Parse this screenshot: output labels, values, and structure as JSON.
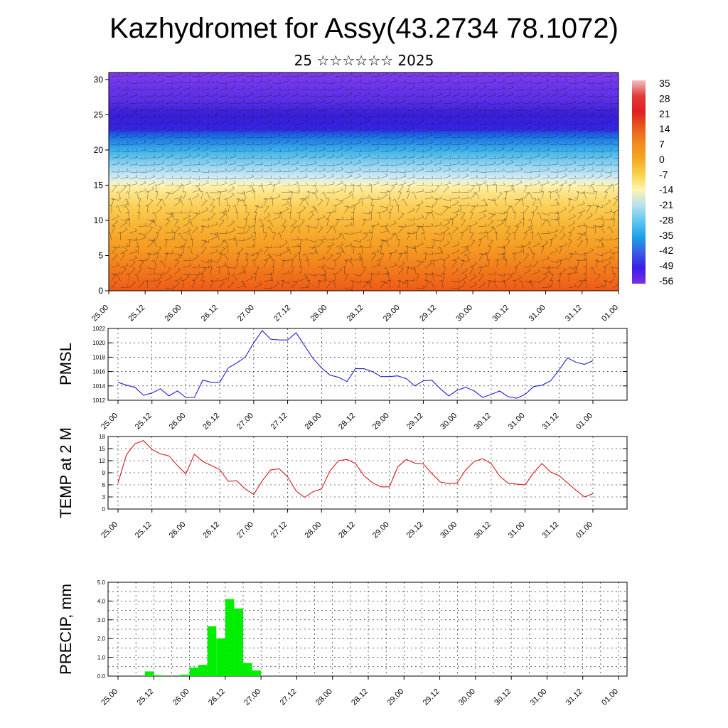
{
  "title": "Kazhydromet for Assy(43.2734 78.1072)",
  "subtitle": "25 ☆☆☆☆☆☆ 2025",
  "time_labels": [
    "25.00",
    "25.12",
    "26.00",
    "26.12",
    "27.00",
    "27.12",
    "28.00",
    "28.12",
    "29.00",
    "29.12",
    "30.00",
    "30.12",
    "31.00",
    "31.12",
    "01.00"
  ],
  "chart_data": [
    {
      "type": "heatmap",
      "name": "cross-section",
      "ylim": [
        0,
        31
      ],
      "yticks": [
        0,
        5,
        10,
        15,
        20,
        25,
        30
      ],
      "colorbar_labels": [
        "35",
        "28",
        "21",
        "14",
        "7",
        "0",
        "-7",
        "-14",
        "-21",
        "-28",
        "-35",
        "-42",
        "-49",
        "-56"
      ],
      "colorbar_colors": [
        "#f2c2c2",
        "#e23a3a",
        "#dd2020",
        "#e85a1e",
        "#f08a1e",
        "#f5a622",
        "#f8d24a",
        "#fff5b0",
        "#b8e0f0",
        "#5fc6f0",
        "#1aa4e6",
        "#3a5ce6",
        "#3a1ee6",
        "#7a2ee6"
      ],
      "profile_levels": [
        0,
        3,
        6,
        9,
        12,
        14,
        15,
        16,
        18,
        20,
        22,
        23,
        25,
        27,
        31
      ],
      "profile_colors": [
        "#ee5a18",
        "#f27a1c",
        "#f59a22",
        "#f8b232",
        "#fbcf55",
        "#fde58a",
        "#fff4b4",
        "#d6ecf2",
        "#8cd2f0",
        "#38b0ea",
        "#1a6ce4",
        "#3424e2",
        "#3a1ed8",
        "#5a2ee6",
        "#7e3cee"
      ]
    },
    {
      "type": "line",
      "name": "PMSL",
      "ylabel": "PMSL",
      "ylim": [
        1012,
        1022
      ],
      "yticks": [
        1012,
        1014,
        1016,
        1018,
        1020,
        1022
      ],
      "color": "#1f1fd6",
      "x": [
        0,
        3,
        6,
        9,
        12,
        15,
        18,
        21,
        24,
        27,
        30,
        33,
        36,
        39,
        42,
        45,
        48,
        51,
        54,
        57,
        60,
        63,
        66,
        69,
        72,
        75,
        78,
        81,
        84,
        87,
        90,
        93,
        96,
        99,
        102,
        105,
        108,
        111,
        114,
        117,
        120,
        123,
        126,
        129,
        132,
        135,
        138,
        141,
        144,
        147,
        150,
        153,
        156,
        159,
        162,
        165,
        168
      ],
      "y": [
        1014.5,
        1014.1,
        1013.8,
        1012.7,
        1013.0,
        1013.6,
        1012.6,
        1013.3,
        1012.4,
        1012.4,
        1014.8,
        1014.5,
        1014.5,
        1016.5,
        1017.2,
        1018.0,
        1020.0,
        1021.7,
        1020.5,
        1020.4,
        1020.4,
        1021.4,
        1019.6,
        1017.8,
        1016.5,
        1015.5,
        1015.2,
        1014.6,
        1016.4,
        1016.4,
        1016.0,
        1015.3,
        1015.3,
        1015.4,
        1015.0,
        1014.0,
        1014.7,
        1014.8,
        1013.6,
        1012.6,
        1013.4,
        1013.8,
        1013.3,
        1012.4,
        1012.8,
        1013.3,
        1012.5,
        1012.3,
        1012.8,
        1013.9,
        1014.1,
        1014.7,
        1016.2,
        1017.9,
        1017.3,
        1017.0,
        1017.5
      ]
    },
    {
      "type": "line",
      "name": "TEMP at 2 M",
      "ylabel": "TEMP at 2 M",
      "ylim": [
        0,
        18
      ],
      "yticks": [
        0,
        3,
        6,
        9,
        12,
        15,
        18
      ],
      "color": "#d61a1a",
      "x": [
        0,
        3,
        6,
        9,
        12,
        15,
        18,
        21,
        24,
        27,
        30,
        33,
        36,
        39,
        42,
        45,
        48,
        51,
        54,
        57,
        60,
        63,
        66,
        69,
        72,
        75,
        78,
        81,
        84,
        87,
        90,
        93,
        96,
        99,
        102,
        105,
        108,
        111,
        114,
        117,
        120,
        123,
        126,
        129,
        132,
        135,
        138,
        141,
        144,
        147,
        150,
        153,
        156,
        159,
        162,
        165,
        168
      ],
      "y": [
        6.5,
        13.5,
        16.2,
        17.0,
        14.8,
        13.7,
        13.2,
        10.8,
        8.7,
        13.6,
        11.8,
        10.8,
        9.8,
        6.9,
        7.0,
        5.0,
        3.6,
        7.0,
        9.7,
        10.0,
        8.0,
        4.5,
        2.9,
        4.3,
        5.0,
        9.5,
        12.0,
        12.3,
        11.3,
        8.3,
        6.5,
        5.5,
        5.5,
        10.5,
        12.3,
        11.4,
        11.2,
        8.8,
        6.7,
        6.3,
        6.5,
        9.7,
        11.8,
        12.5,
        11.3,
        8.2,
        6.4,
        6.2,
        6.0,
        9.0,
        11.3,
        9.2,
        8.3,
        6.5,
        4.7,
        3.0,
        3.8
      ]
    },
    {
      "type": "bar",
      "name": "PRECIP, mm",
      "ylabel": "PRECIP, mm",
      "ylim": [
        0,
        5
      ],
      "yticks": [
        "0.0",
        "1.0",
        "2.0",
        "3.0",
        "4.0",
        "5.0"
      ],
      "color": "#00ee00",
      "bin_hours": 3,
      "bins": [
        {
          "start": 9,
          "value": 0.25
        },
        {
          "start": 12,
          "value": 0.05
        },
        {
          "start": 21,
          "value": 0.08
        },
        {
          "start": 24,
          "value": 0.45
        },
        {
          "start": 27,
          "value": 0.6
        },
        {
          "start": 30,
          "value": 2.65
        },
        {
          "start": 33,
          "value": 2.0
        },
        {
          "start": 36,
          "value": 4.1
        },
        {
          "start": 39,
          "value": 3.6
        },
        {
          "start": 42,
          "value": 0.7
        },
        {
          "start": 45,
          "value": 0.3
        }
      ]
    }
  ]
}
